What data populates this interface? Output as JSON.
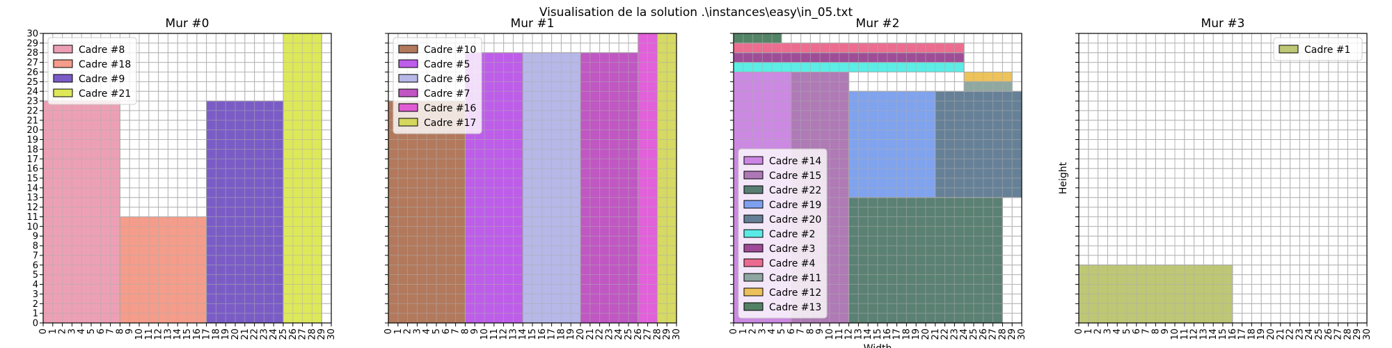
{
  "figure": {
    "title": "Visualisation de la solution .\\instances\\easy\\in_05.txt"
  },
  "chart_data": [
    {
      "type": "rectangle-packing",
      "title": "Mur #0",
      "xlim": [
        0,
        30
      ],
      "ylim": [
        0,
        30
      ],
      "grid": true,
      "show_y_tick_labels": true,
      "xlabel": "",
      "ylabel": "",
      "legend_position": "upper-left",
      "rects": [
        {
          "name": "Cadre #8",
          "x": 0,
          "y": 0,
          "w": 8,
          "h": 23,
          "color": "#ea8fa8"
        },
        {
          "name": "Cadre #18",
          "x": 8,
          "y": 0,
          "w": 9,
          "h": 11,
          "color": "#f38b76"
        },
        {
          "name": "Cadre #9",
          "x": 17,
          "y": 0,
          "w": 8,
          "h": 23,
          "color": "#6440bd"
        },
        {
          "name": "Cadre #21",
          "x": 25,
          "y": 0,
          "w": 4,
          "h": 30,
          "color": "#d8e53c"
        }
      ]
    },
    {
      "type": "rectangle-packing",
      "title": "Mur #1",
      "xlim": [
        0,
        30
      ],
      "ylim": [
        0,
        30
      ],
      "grid": true,
      "show_y_tick_labels": false,
      "xlabel": "",
      "ylabel": "",
      "legend_position": "upper-left",
      "rects": [
        {
          "name": "Cadre #10",
          "x": 0,
          "y": 0,
          "w": 8,
          "h": 23,
          "color": "#a6613f"
        },
        {
          "name": "Cadre #5",
          "x": 8,
          "y": 0,
          "w": 6,
          "h": 28,
          "color": "#b341e6"
        },
        {
          "name": "Cadre #6",
          "x": 14,
          "y": 0,
          "w": 6,
          "h": 28,
          "color": "#aaabe4"
        },
        {
          "name": "Cadre #7",
          "x": 20,
          "y": 0,
          "w": 6,
          "h": 28,
          "color": "#b53ab8"
        },
        {
          "name": "Cadre #16",
          "x": 26,
          "y": 0,
          "w": 2,
          "h": 30,
          "color": "#dd44d4"
        },
        {
          "name": "Cadre #17",
          "x": 28,
          "y": 0,
          "w": 2,
          "h": 30,
          "color": "#cfd447"
        }
      ]
    },
    {
      "type": "rectangle-packing",
      "title": "Mur #2",
      "xlim": [
        0,
        30
      ],
      "ylim": [
        0,
        30
      ],
      "grid": true,
      "show_y_tick_labels": false,
      "xlabel": "Width",
      "ylabel": "",
      "legend_position": "lower-left",
      "rects": [
        {
          "name": "Cadre #14",
          "x": 0,
          "y": 0,
          "w": 6,
          "h": 26,
          "color": "#c373de"
        },
        {
          "name": "Cadre #15",
          "x": 6,
          "y": 0,
          "w": 6,
          "h": 26,
          "color": "#a163a9"
        },
        {
          "name": "Cadre #22",
          "x": 12,
          "y": 0,
          "w": 16,
          "h": 13,
          "color": "#3d6b5b"
        },
        {
          "name": "Cadre #19",
          "x": 12,
          "y": 13,
          "w": 9,
          "h": 11,
          "color": "#6893ec"
        },
        {
          "name": "Cadre #20",
          "x": 21,
          "y": 13,
          "w": 9,
          "h": 11,
          "color": "#4b6b85"
        },
        {
          "name": "Cadre #2",
          "x": 0,
          "y": 26,
          "w": 24,
          "h": 1,
          "color": "#3eeae2"
        },
        {
          "name": "Cadre #3",
          "x": 0,
          "y": 27,
          "w": 24,
          "h": 1,
          "color": "#8e2e86"
        },
        {
          "name": "Cadre #4",
          "x": 0,
          "y": 28,
          "w": 24,
          "h": 1,
          "color": "#e9537d"
        },
        {
          "name": "Cadre #11",
          "x": 24,
          "y": 24,
          "w": 5,
          "h": 1,
          "color": "#7b9a90"
        },
        {
          "name": "Cadre #12",
          "x": 24,
          "y": 25,
          "w": 5,
          "h": 1,
          "color": "#eab83d"
        },
        {
          "name": "Cadre #13",
          "x": 0,
          "y": 29,
          "w": 5,
          "h": 1,
          "color": "#356e4b"
        }
      ]
    },
    {
      "type": "rectangle-packing",
      "title": "Mur #3",
      "xlim": [
        0,
        30
      ],
      "ylim": [
        0,
        30
      ],
      "grid": true,
      "show_y_tick_labels": false,
      "xlabel": "",
      "ylabel": "Height",
      "legend_position": "upper-right",
      "rects": [
        {
          "name": "Cadre #1",
          "x": 0,
          "y": 0,
          "w": 16,
          "h": 6,
          "color": "#b3bd5c"
        }
      ]
    }
  ]
}
